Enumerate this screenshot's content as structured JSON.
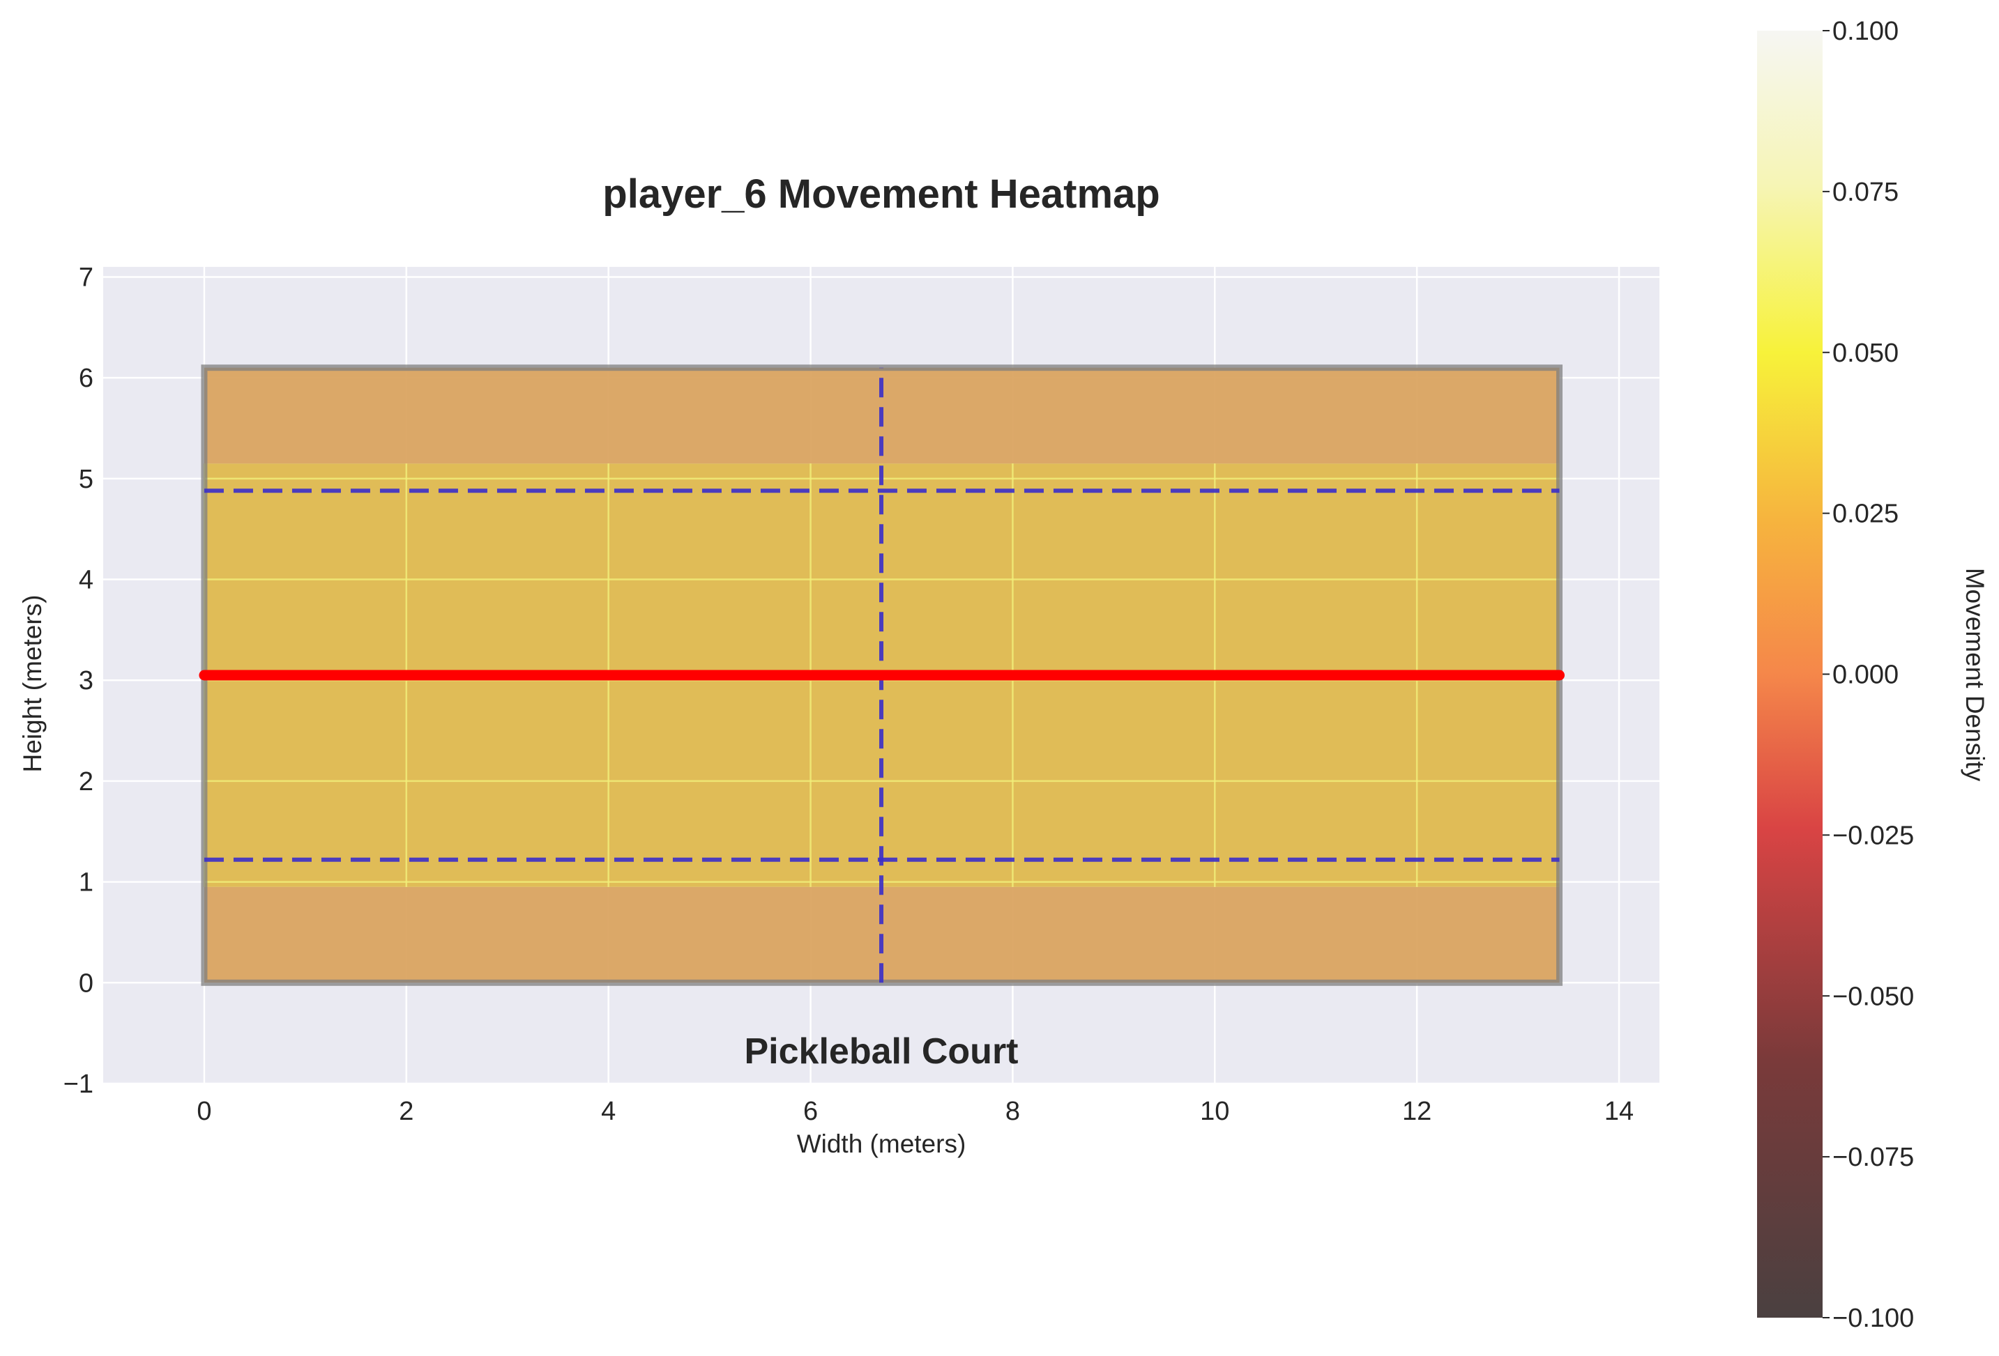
{
  "chart_data": {
    "type": "heatmap",
    "title": "player_6 Movement Heatmap",
    "xlabel": "Width (meters)",
    "ylabel": "Height (meters)",
    "xlim": [
      -1,
      14.4
    ],
    "ylim": [
      -1,
      7.1
    ],
    "xticks": [
      0,
      2,
      4,
      6,
      8,
      10,
      12,
      14
    ],
    "xtick_labels": [
      "0",
      "2",
      "4",
      "6",
      "8",
      "10",
      "12",
      "14"
    ],
    "yticks": [
      -1,
      0,
      1,
      2,
      3,
      4,
      5,
      6,
      7
    ],
    "ytick_labels": [
      "−1",
      "0",
      "1",
      "2",
      "3",
      "4",
      "5",
      "6",
      "7"
    ],
    "grid": true,
    "court": {
      "label": "Pickleball Court",
      "width": 13.41,
      "height": 6.1,
      "net_y": 3.05,
      "kitchen_lines_y": [
        1.22,
        4.88
      ],
      "center_line_x": 6.7
    },
    "heatmap": {
      "x_range": [
        0,
        13.41
      ],
      "y_range": [
        0,
        6.1
      ],
      "uniform_value": 0.0,
      "bands": [
        {
          "y_from": 0.0,
          "y_to": 0.95,
          "color": "#d9a35e"
        },
        {
          "y_from": 0.95,
          "y_to": 5.15,
          "color": "#dfb84b"
        },
        {
          "y_from": 5.15,
          "y_to": 6.1,
          "color": "#d9a35e"
        }
      ]
    },
    "colorbar": {
      "label": "Movement Density",
      "range": [
        -0.1,
        0.1
      ],
      "ticks": [
        -0.1,
        -0.075,
        -0.05,
        -0.025,
        0.0,
        0.025,
        0.05,
        0.075,
        0.1
      ],
      "tick_labels": [
        "−0.100",
        "−0.075",
        "−0.050",
        "−0.025",
        "0.000",
        "0.025",
        "0.050",
        "0.075",
        "0.100"
      ],
      "colormap": "hot"
    },
    "colors": {
      "axes_bg": "#eaeaf2",
      "grid": "#ffffff",
      "net": "#ff0000",
      "kitchen_lines": "#3b2fc9",
      "court_border": "#7f7f7f"
    }
  }
}
